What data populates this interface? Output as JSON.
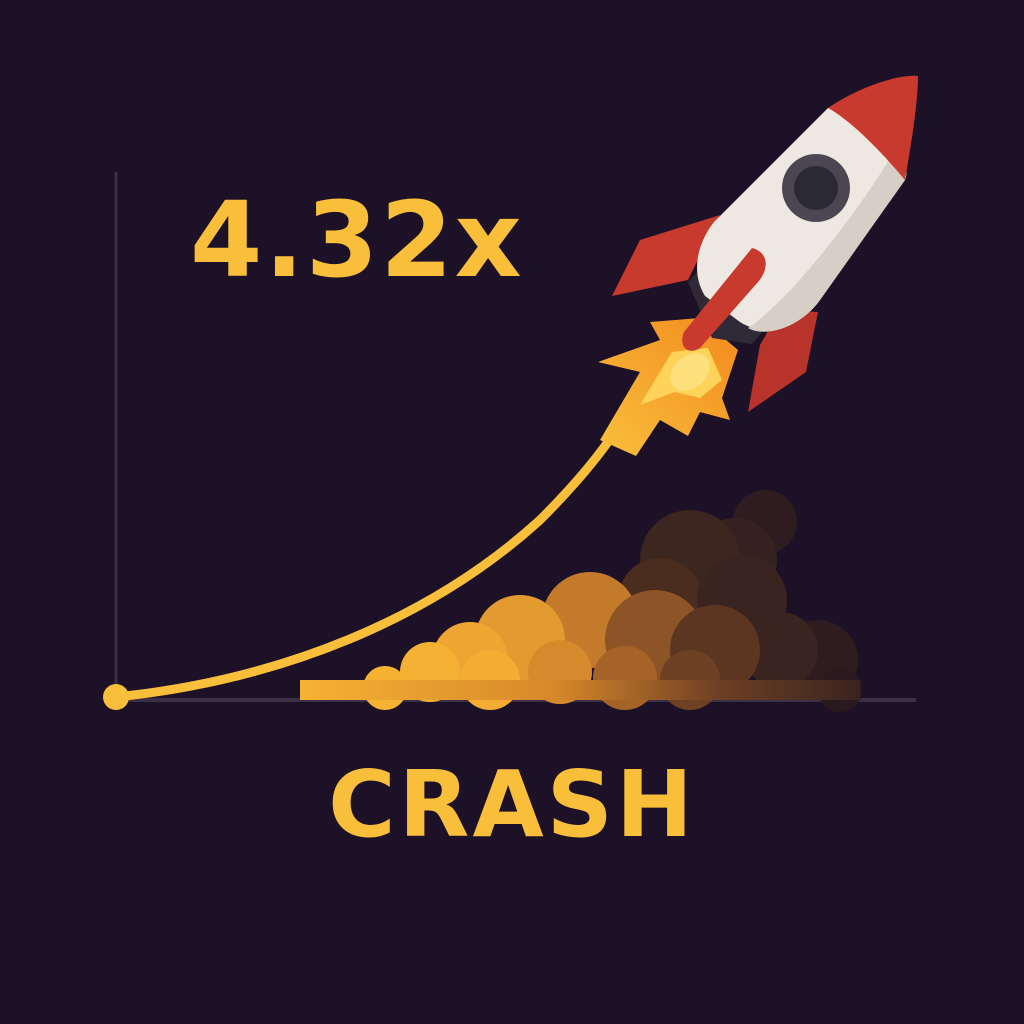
{
  "game": {
    "multiplier": "4.32x",
    "title": "CRASH"
  },
  "colors": {
    "background": "#1c1126",
    "accent": "#f9bf3b",
    "axis": "#3a2f45",
    "rocket_body": "#ede8e1",
    "rocket_red": "#c93a2e",
    "smoke_warm": "#f1a731",
    "smoke_dark": "#3a2420"
  },
  "icons": {
    "rocket": "rocket-icon",
    "flame": "flame-icon",
    "smoke": "smoke-cloud-icon"
  }
}
